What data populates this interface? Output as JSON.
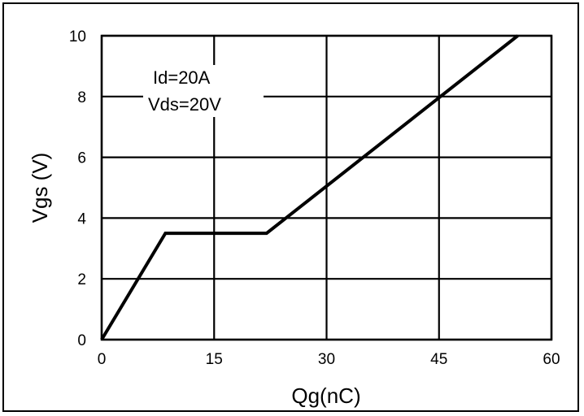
{
  "chart_data": {
    "type": "line",
    "xlabel": "Qg(nC)",
    "ylabel": "Vgs (V)",
    "xlim": [
      0,
      60
    ],
    "ylim": [
      0,
      10
    ],
    "xticks": [
      0,
      15,
      30,
      45,
      60
    ],
    "yticks": [
      0,
      2,
      4,
      6,
      8,
      10
    ],
    "grid": true,
    "annotations": [
      "Id=20A",
      "Vds=20V"
    ],
    "series": [
      {
        "x": [
          0,
          8.5,
          22,
          55.5
        ],
        "y": [
          0,
          3.5,
          3.5,
          10
        ]
      }
    ]
  }
}
